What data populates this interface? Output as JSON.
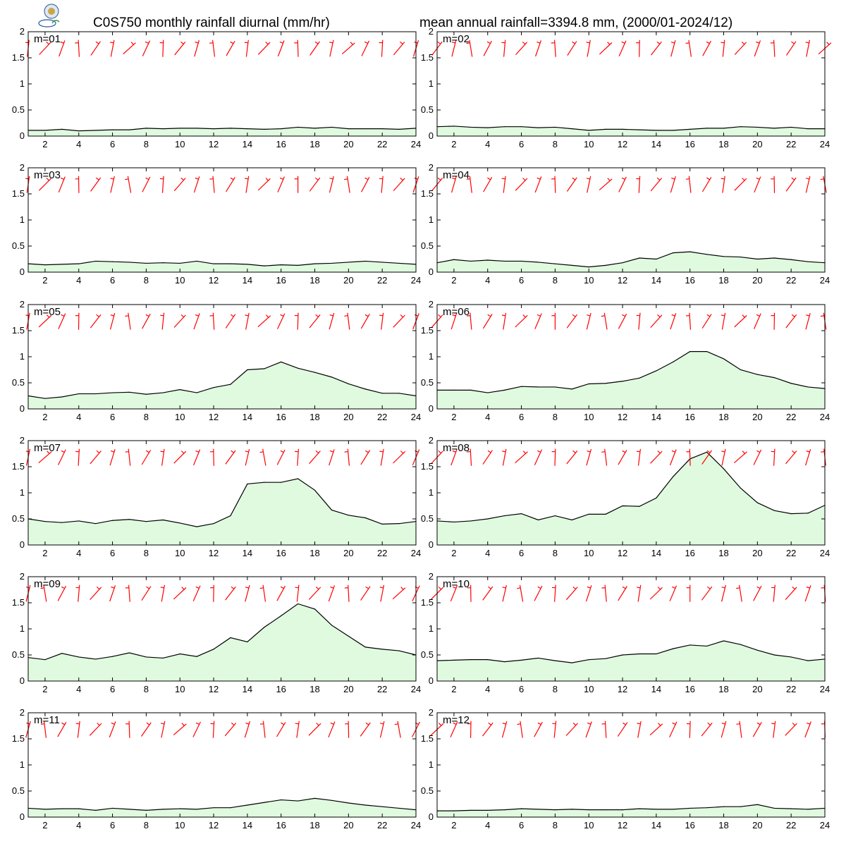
{
  "header": {
    "title_left": "C0S750 monthly rainfall diurnal (mm/hr)",
    "title_right": "mean annual rainfall=3394.8 mm, (2000/01-2024/12)",
    "logo_icon": "lab-logo-seal-icon"
  },
  "colors": {
    "fill": "#e0fae0",
    "line": "#000000",
    "wind_barb": "#ff0000"
  },
  "chart_data": [
    {
      "type": "area",
      "label": "m=01",
      "x": [
        1,
        2,
        3,
        4,
        5,
        6,
        7,
        8,
        9,
        10,
        11,
        12,
        13,
        14,
        15,
        16,
        17,
        18,
        19,
        20,
        21,
        22,
        23,
        24
      ],
      "values": [
        0.11,
        0.11,
        0.13,
        0.1,
        0.11,
        0.12,
        0.12,
        0.15,
        0.14,
        0.15,
        0.15,
        0.14,
        0.15,
        0.14,
        0.13,
        0.14,
        0.17,
        0.15,
        0.17,
        0.14,
        0.14,
        0.14,
        0.13,
        0.15
      ],
      "xticks": [
        2,
        4,
        6,
        8,
        10,
        12,
        14,
        16,
        18,
        20,
        22,
        24
      ],
      "yticks": [
        0,
        0.5,
        1,
        1.5,
        2
      ],
      "xlim": [
        1,
        24
      ],
      "ylim": [
        0,
        2
      ]
    },
    {
      "type": "area",
      "label": "m=02",
      "x": [
        1,
        2,
        3,
        4,
        5,
        6,
        7,
        8,
        9,
        10,
        11,
        12,
        13,
        14,
        15,
        16,
        17,
        18,
        19,
        20,
        21,
        22,
        23,
        24
      ],
      "values": [
        0.18,
        0.19,
        0.17,
        0.16,
        0.18,
        0.18,
        0.16,
        0.17,
        0.14,
        0.11,
        0.13,
        0.13,
        0.12,
        0.11,
        0.11,
        0.13,
        0.15,
        0.15,
        0.18,
        0.17,
        0.15,
        0.17,
        0.14,
        0.14
      ],
      "xticks": [
        2,
        4,
        6,
        8,
        10,
        12,
        14,
        16,
        18,
        20,
        22,
        24
      ],
      "yticks": [
        0,
        0.5,
        1,
        1.5,
        2
      ],
      "xlim": [
        1,
        24
      ],
      "ylim": [
        0,
        2
      ]
    },
    {
      "type": "area",
      "label": "m=03",
      "x": [
        1,
        2,
        3,
        4,
        5,
        6,
        7,
        8,
        9,
        10,
        11,
        12,
        13,
        14,
        15,
        16,
        17,
        18,
        19,
        20,
        21,
        22,
        23,
        24
      ],
      "values": [
        0.16,
        0.14,
        0.15,
        0.16,
        0.21,
        0.2,
        0.19,
        0.17,
        0.18,
        0.17,
        0.21,
        0.16,
        0.16,
        0.15,
        0.12,
        0.14,
        0.13,
        0.16,
        0.17,
        0.19,
        0.21,
        0.19,
        0.17,
        0.15
      ],
      "xticks": [
        2,
        4,
        6,
        8,
        10,
        12,
        14,
        16,
        18,
        20,
        22,
        24
      ],
      "yticks": [
        0,
        0.5,
        1,
        1.5,
        2
      ],
      "xlim": [
        1,
        24
      ],
      "ylim": [
        0,
        2
      ]
    },
    {
      "type": "area",
      "label": "m=04",
      "x": [
        1,
        2,
        3,
        4,
        5,
        6,
        7,
        8,
        9,
        10,
        11,
        12,
        13,
        14,
        15,
        16,
        17,
        18,
        19,
        20,
        21,
        22,
        23,
        24
      ],
      "values": [
        0.18,
        0.24,
        0.21,
        0.23,
        0.21,
        0.21,
        0.19,
        0.16,
        0.13,
        0.1,
        0.13,
        0.18,
        0.27,
        0.25,
        0.37,
        0.39,
        0.34,
        0.3,
        0.29,
        0.25,
        0.27,
        0.24,
        0.2,
        0.18
      ],
      "xticks": [
        2,
        4,
        6,
        8,
        10,
        12,
        14,
        16,
        18,
        20,
        22,
        24
      ],
      "yticks": [
        0,
        0.5,
        1,
        1.5,
        2
      ],
      "xlim": [
        1,
        24
      ],
      "ylim": [
        0,
        2
      ]
    },
    {
      "type": "area",
      "label": "m=05",
      "x": [
        1,
        2,
        3,
        4,
        5,
        6,
        7,
        8,
        9,
        10,
        11,
        12,
        13,
        14,
        15,
        16,
        17,
        18,
        19,
        20,
        21,
        22,
        23,
        24
      ],
      "values": [
        0.25,
        0.2,
        0.23,
        0.29,
        0.29,
        0.31,
        0.32,
        0.28,
        0.31,
        0.37,
        0.31,
        0.41,
        0.47,
        0.75,
        0.77,
        0.9,
        0.78,
        0.7,
        0.61,
        0.48,
        0.38,
        0.3,
        0.3,
        0.25
      ],
      "xticks": [
        2,
        4,
        6,
        8,
        10,
        12,
        14,
        16,
        18,
        20,
        22,
        24
      ],
      "yticks": [
        0,
        0.5,
        1,
        1.5,
        2
      ],
      "xlim": [
        1,
        24
      ],
      "ylim": [
        0,
        2
      ]
    },
    {
      "type": "area",
      "label": "m=06",
      "x": [
        1,
        2,
        3,
        4,
        5,
        6,
        7,
        8,
        9,
        10,
        11,
        12,
        13,
        14,
        15,
        16,
        17,
        18,
        19,
        20,
        21,
        22,
        23,
        24
      ],
      "values": [
        0.36,
        0.36,
        0.36,
        0.31,
        0.36,
        0.43,
        0.42,
        0.42,
        0.38,
        0.48,
        0.49,
        0.53,
        0.59,
        0.73,
        0.9,
        1.1,
        1.1,
        0.96,
        0.75,
        0.66,
        0.6,
        0.49,
        0.42,
        0.39
      ],
      "xticks": [
        2,
        4,
        6,
        8,
        10,
        12,
        14,
        16,
        18,
        20,
        22,
        24
      ],
      "yticks": [
        0,
        0.5,
        1,
        1.5,
        2
      ],
      "xlim": [
        1,
        24
      ],
      "ylim": [
        0,
        2
      ]
    },
    {
      "type": "area",
      "label": "m=07",
      "x": [
        1,
        2,
        3,
        4,
        5,
        6,
        7,
        8,
        9,
        10,
        11,
        12,
        13,
        14,
        15,
        16,
        17,
        18,
        19,
        20,
        21,
        22,
        23,
        24
      ],
      "values": [
        0.5,
        0.45,
        0.43,
        0.46,
        0.41,
        0.47,
        0.49,
        0.45,
        0.48,
        0.42,
        0.35,
        0.41,
        0.56,
        1.17,
        1.2,
        1.2,
        1.27,
        1.05,
        0.67,
        0.57,
        0.52,
        0.4,
        0.41,
        0.45
      ],
      "xticks": [
        2,
        4,
        6,
        8,
        10,
        12,
        14,
        16,
        18,
        20,
        22,
        24
      ],
      "yticks": [
        0,
        0.5,
        1,
        1.5,
        2
      ],
      "xlim": [
        1,
        24
      ],
      "ylim": [
        0,
        2
      ]
    },
    {
      "type": "area",
      "label": "m=08",
      "x": [
        1,
        2,
        3,
        4,
        5,
        6,
        7,
        8,
        9,
        10,
        11,
        12,
        13,
        14,
        15,
        16,
        17,
        18,
        19,
        20,
        21,
        22,
        23,
        24
      ],
      "values": [
        0.46,
        0.44,
        0.46,
        0.5,
        0.56,
        0.6,
        0.48,
        0.56,
        0.48,
        0.59,
        0.59,
        0.75,
        0.74,
        0.9,
        1.31,
        1.65,
        1.78,
        1.46,
        1.09,
        0.81,
        0.66,
        0.6,
        0.61,
        0.76
      ],
      "xticks": [
        2,
        4,
        6,
        8,
        10,
        12,
        14,
        16,
        18,
        20,
        22,
        24
      ],
      "yticks": [
        0,
        0.5,
        1,
        1.5,
        2
      ],
      "xlim": [
        1,
        24
      ],
      "ylim": [
        0,
        2
      ]
    },
    {
      "type": "area",
      "label": "m=09",
      "x": [
        1,
        2,
        3,
        4,
        5,
        6,
        7,
        8,
        9,
        10,
        11,
        12,
        13,
        14,
        15,
        16,
        17,
        18,
        19,
        20,
        21,
        22,
        23,
        24
      ],
      "values": [
        0.45,
        0.41,
        0.53,
        0.46,
        0.42,
        0.47,
        0.54,
        0.46,
        0.44,
        0.52,
        0.47,
        0.61,
        0.83,
        0.75,
        1.03,
        1.25,
        1.48,
        1.38,
        1.07,
        0.86,
        0.65,
        0.61,
        0.58,
        0.5
      ],
      "xticks": [
        2,
        4,
        6,
        8,
        10,
        12,
        14,
        16,
        18,
        20,
        22,
        24
      ],
      "yticks": [
        0,
        0.5,
        1,
        1.5,
        2
      ],
      "xlim": [
        1,
        24
      ],
      "ylim": [
        0,
        2
      ]
    },
    {
      "type": "area",
      "label": "m=10",
      "x": [
        1,
        2,
        3,
        4,
        5,
        6,
        7,
        8,
        9,
        10,
        11,
        12,
        13,
        14,
        15,
        16,
        17,
        18,
        19,
        20,
        21,
        22,
        23,
        24
      ],
      "values": [
        0.39,
        0.4,
        0.41,
        0.41,
        0.37,
        0.4,
        0.44,
        0.39,
        0.35,
        0.41,
        0.43,
        0.5,
        0.52,
        0.52,
        0.62,
        0.69,
        0.67,
        0.77,
        0.7,
        0.59,
        0.5,
        0.46,
        0.39,
        0.42
      ],
      "xticks": [
        2,
        4,
        6,
        8,
        10,
        12,
        14,
        16,
        18,
        20,
        22,
        24
      ],
      "yticks": [
        0,
        0.5,
        1,
        1.5,
        2
      ],
      "xlim": [
        1,
        24
      ],
      "ylim": [
        0,
        2
      ]
    },
    {
      "type": "area",
      "label": "m=11",
      "x": [
        1,
        2,
        3,
        4,
        5,
        6,
        7,
        8,
        9,
        10,
        11,
        12,
        13,
        14,
        15,
        16,
        17,
        18,
        19,
        20,
        21,
        22,
        23,
        24
      ],
      "values": [
        0.17,
        0.15,
        0.16,
        0.16,
        0.13,
        0.17,
        0.15,
        0.13,
        0.15,
        0.16,
        0.15,
        0.18,
        0.18,
        0.23,
        0.28,
        0.33,
        0.31,
        0.36,
        0.32,
        0.27,
        0.23,
        0.2,
        0.17,
        0.14
      ],
      "xticks": [
        2,
        4,
        6,
        8,
        10,
        12,
        14,
        16,
        18,
        20,
        22,
        24
      ],
      "yticks": [
        0,
        0.5,
        1,
        1.5,
        2
      ],
      "xlim": [
        1,
        24
      ],
      "ylim": [
        0,
        2
      ]
    },
    {
      "type": "area",
      "label": "m=12",
      "x": [
        1,
        2,
        3,
        4,
        5,
        6,
        7,
        8,
        9,
        10,
        11,
        12,
        13,
        14,
        15,
        16,
        17,
        18,
        19,
        20,
        21,
        22,
        23,
        24
      ],
      "values": [
        0.12,
        0.12,
        0.13,
        0.13,
        0.14,
        0.16,
        0.15,
        0.14,
        0.15,
        0.14,
        0.14,
        0.14,
        0.16,
        0.15,
        0.15,
        0.17,
        0.18,
        0.2,
        0.2,
        0.24,
        0.17,
        0.16,
        0.15,
        0.17
      ],
      "xticks": [
        2,
        4,
        6,
        8,
        10,
        12,
        14,
        16,
        18,
        20,
        22,
        24
      ],
      "yticks": [
        0,
        0.5,
        1,
        1.5,
        2
      ],
      "xlim": [
        1,
        24
      ],
      "ylim": [
        0,
        2
      ]
    }
  ]
}
